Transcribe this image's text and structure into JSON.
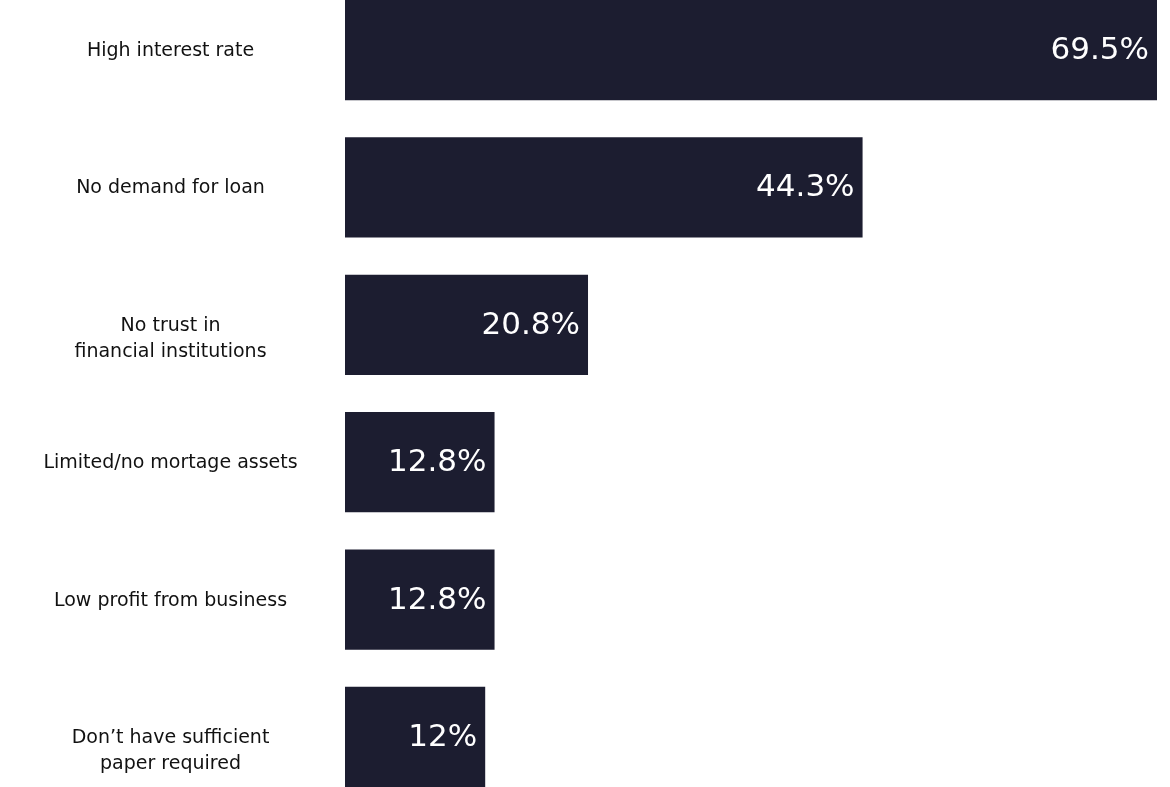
{
  "chart_data": {
    "type": "bar",
    "orientation": "horizontal",
    "categories": [
      "High interest rate",
      "No demand for loan",
      "No trust in\nfinancial institutions",
      "Limited/no mortage assets",
      "Low profit from business",
      "Don’t have sufficient\npaper required"
    ],
    "values": [
      69.5,
      44.3,
      20.8,
      12.8,
      12.8,
      12
    ],
    "value_labels": [
      "69.5%",
      "44.3%",
      "20.8%",
      "12.8%",
      "12.8%",
      "12%"
    ],
    "color": "#1c1d30"
  }
}
